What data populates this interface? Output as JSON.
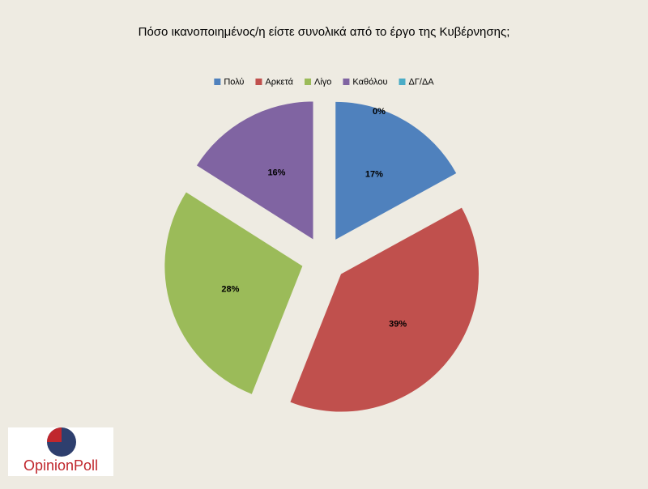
{
  "chart_data": {
    "type": "pie",
    "title": "Πόσο ικανοποιημένος/η είστε συνολικά από  το έργο της Κυβέρνησης;",
    "categories": [
      "Πολύ",
      "Αρκετά",
      "Λίγο",
      "Καθόλου",
      "ΔΓ/ΔΑ"
    ],
    "values": [
      17,
      39,
      28,
      16,
      0
    ],
    "value_labels": [
      "17%",
      "39%",
      "28%",
      "16%",
      "0%"
    ],
    "colors": [
      "#4f81bd",
      "#c0504d",
      "#9bbb59",
      "#8064a2",
      "#4bacc6"
    ],
    "legend": "top"
  },
  "logo": {
    "text": "OpinionPoll"
  }
}
